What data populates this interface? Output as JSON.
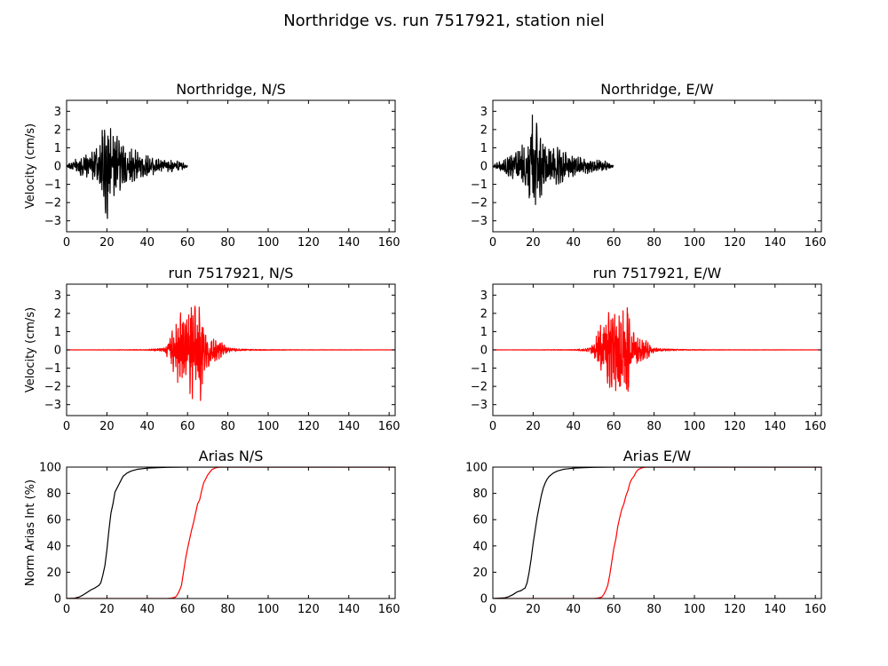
{
  "figure": {
    "title": "Northridge vs. run 7517921, station niel",
    "colors": {
      "recorded": "#000000",
      "simulated": "#ff0000",
      "axes": "#000000",
      "background": "#ffffff"
    }
  },
  "chart_data": [
    {
      "id": "northridge-ns",
      "type": "line",
      "title": "Northridge, N/S",
      "xlabel": "",
      "ylabel": "Velocity (cm/s)",
      "xlim": [
        0,
        163
      ],
      "ylim": [
        -3.6,
        3.6
      ],
      "xticks": [
        0,
        20,
        40,
        60,
        80,
        100,
        120,
        140,
        160
      ],
      "yticks": [
        -3,
        -2,
        -1,
        0,
        1,
        2,
        3
      ],
      "series": [
        {
          "color": "#000000",
          "kind": "waveform",
          "x": [
            0,
            3,
            6,
            9,
            12,
            14,
            16,
            17,
            18,
            19,
            20,
            21,
            22,
            23,
            24,
            25,
            27,
            29,
            31,
            33,
            35,
            38,
            41,
            44,
            47,
            50,
            53,
            56,
            58,
            60
          ],
          "amplitude": [
            0.05,
            0.25,
            0.45,
            0.55,
            0.7,
            0.9,
            1.2,
            1.6,
            2.1,
            2.3,
            3.2,
            2.6,
            2.3,
            1.9,
            1.7,
            1.6,
            1.3,
            1.1,
            1.0,
            0.9,
            0.8,
            0.6,
            0.5,
            0.4,
            0.35,
            0.3,
            0.3,
            0.25,
            0.15,
            0.05
          ]
        }
      ]
    },
    {
      "id": "northridge-ew",
      "type": "line",
      "title": "Northridge, E/W",
      "xlabel": "",
      "ylabel": "",
      "xlim": [
        0,
        163
      ],
      "ylim": [
        -3.6,
        3.6
      ],
      "xticks": [
        0,
        20,
        40,
        60,
        80,
        100,
        120,
        140,
        160
      ],
      "yticks": [
        -3,
        -2,
        -1,
        0,
        1,
        2,
        3
      ],
      "series": [
        {
          "color": "#000000",
          "kind": "waveform",
          "x": [
            0,
            3,
            6,
            9,
            12,
            14,
            16,
            17,
            18,
            19,
            20,
            21,
            22,
            23,
            24,
            25,
            27,
            29,
            31,
            33,
            35,
            38,
            41,
            44,
            47,
            50,
            53,
            56,
            58,
            60
          ],
          "amplitude": [
            0.05,
            0.25,
            0.45,
            0.6,
            0.8,
            1.0,
            1.3,
            1.7,
            2.0,
            2.9,
            2.6,
            2.4,
            2.1,
            1.9,
            1.7,
            1.5,
            1.3,
            1.1,
            1.0,
            0.9,
            0.8,
            0.6,
            0.5,
            0.45,
            0.4,
            0.35,
            0.3,
            0.25,
            0.15,
            0.05
          ]
        }
      ]
    },
    {
      "id": "run-ns",
      "type": "line",
      "title": "run 7517921, N/S",
      "xlabel": "",
      "ylabel": "Velocity (cm/s)",
      "xlim": [
        0,
        163
      ],
      "ylim": [
        -3.6,
        3.6
      ],
      "xticks": [
        0,
        20,
        40,
        60,
        80,
        100,
        120,
        140,
        160
      ],
      "yticks": [
        -3,
        -2,
        -1,
        0,
        1,
        2,
        3
      ],
      "series": [
        {
          "color": "#ff0000",
          "kind": "waveform",
          "x": [
            0,
            40,
            48,
            50,
            52,
            54,
            56,
            58,
            60,
            62,
            63,
            64,
            65,
            66,
            67,
            68,
            70,
            72,
            74,
            76,
            78,
            80,
            85,
            90,
            100,
            120,
            140,
            163
          ],
          "amplitude": [
            0.0,
            0.02,
            0.1,
            0.4,
            0.9,
            1.5,
            2.0,
            2.0,
            1.8,
            2.6,
            3.3,
            2.2,
            2.1,
            2.7,
            2.5,
            1.2,
            0.9,
            0.7,
            0.6,
            0.5,
            0.3,
            0.12,
            0.06,
            0.04,
            0.02,
            0.01,
            0.01,
            0.0
          ]
        }
      ]
    },
    {
      "id": "run-ew",
      "type": "line",
      "title": "run 7517921, E/W",
      "xlabel": "",
      "ylabel": "",
      "xlim": [
        0,
        163
      ],
      "ylim": [
        -3.6,
        3.6
      ],
      "xticks": [
        0,
        20,
        40,
        60,
        80,
        100,
        120,
        140,
        160
      ],
      "yticks": [
        -3,
        -2,
        -1,
        0,
        1,
        2,
        3
      ],
      "series": [
        {
          "color": "#ff0000",
          "kind": "waveform",
          "x": [
            0,
            40,
            48,
            50,
            52,
            54,
            56,
            58,
            60,
            62,
            63,
            64,
            65,
            66,
            67,
            68,
            70,
            72,
            74,
            76,
            78,
            80,
            85,
            90,
            100,
            120,
            140,
            163
          ],
          "amplitude": [
            0.0,
            0.02,
            0.1,
            0.4,
            0.9,
            1.5,
            2.0,
            2.0,
            1.8,
            2.6,
            3.3,
            2.2,
            2.1,
            2.7,
            2.5,
            1.2,
            0.9,
            0.7,
            0.6,
            0.5,
            0.3,
            0.12,
            0.06,
            0.04,
            0.02,
            0.01,
            0.01,
            0.0
          ]
        }
      ]
    },
    {
      "id": "arias-ns",
      "type": "line",
      "title": "Arias N/S",
      "xlabel": "",
      "ylabel": "Norm Arias Int (%)",
      "xlim": [
        0,
        163
      ],
      "ylim": [
        0,
        100
      ],
      "xticks": [
        0,
        20,
        40,
        60,
        80,
        100,
        120,
        140,
        160
      ],
      "yticks": [
        0,
        20,
        40,
        60,
        80,
        100
      ],
      "series": [
        {
          "color": "#000000",
          "x": [
            0,
            4,
            6,
            8,
            10,
            12,
            14,
            16,
            17,
            18,
            19,
            20,
            21,
            22,
            23,
            24,
            25,
            26,
            27,
            28,
            30,
            32,
            35,
            40,
            45,
            50,
            55,
            60,
            163
          ],
          "y": [
            0,
            0.3,
            1,
            2.5,
            4.5,
            6.5,
            8,
            10,
            12,
            18,
            25,
            37,
            52,
            65,
            72,
            81,
            84,
            87,
            90,
            93,
            95.5,
            97,
            98.3,
            99.2,
            99.6,
            99.8,
            99.9,
            100,
            100
          ]
        },
        {
          "color": "#ff0000",
          "x": [
            0,
            40,
            50,
            52,
            54,
            55,
            56,
            57,
            58,
            59,
            60,
            61,
            62,
            63,
            64,
            65,
            66,
            67,
            68,
            69,
            70,
            71,
            72,
            74,
            76,
            80,
            90,
            163
          ],
          "y": [
            0,
            0,
            0,
            0.3,
            1,
            3,
            6,
            10,
            20,
            30,
            38,
            45,
            52,
            58,
            65,
            72,
            75,
            82,
            88,
            91,
            94,
            96,
            98,
            99.5,
            100,
            100,
            100,
            100
          ]
        }
      ]
    },
    {
      "id": "arias-ew",
      "type": "line",
      "title": "Arias E/W",
      "xlabel": "",
      "ylabel": "",
      "xlim": [
        0,
        163
      ],
      "ylim": [
        0,
        100
      ],
      "xticks": [
        0,
        20,
        40,
        60,
        80,
        100,
        120,
        140,
        160
      ],
      "yticks": [
        0,
        20,
        40,
        60,
        80,
        100
      ],
      "series": [
        {
          "color": "#000000",
          "x": [
            0,
            6,
            8,
            10,
            12,
            14,
            15,
            16,
            17,
            18,
            19,
            20,
            21,
            22,
            23,
            24,
            25,
            26,
            27,
            28,
            30,
            32,
            35,
            40,
            45,
            50,
            55,
            60,
            163
          ],
          "y": [
            0,
            0.5,
            1.5,
            3,
            5,
            6,
            7,
            8,
            12,
            20,
            30,
            42,
            52,
            62,
            70,
            78,
            84,
            88,
            91,
            93,
            95.5,
            97,
            98.3,
            99.2,
            99.6,
            99.8,
            99.9,
            100,
            100
          ]
        },
        {
          "color": "#ff0000",
          "x": [
            0,
            40,
            50,
            52,
            54,
            55,
            56,
            57,
            58,
            59,
            60,
            61,
            62,
            63,
            64,
            65,
            66,
            67,
            68,
            69,
            70,
            71,
            72,
            74,
            76,
            80,
            90,
            163
          ],
          "y": [
            0,
            0,
            0,
            0.3,
            1,
            3,
            6,
            10,
            18,
            28,
            38,
            45,
            55,
            62,
            68,
            72,
            78,
            82,
            88,
            91,
            93,
            96,
            98,
            99.5,
            100,
            100,
            100,
            100
          ]
        }
      ]
    }
  ]
}
